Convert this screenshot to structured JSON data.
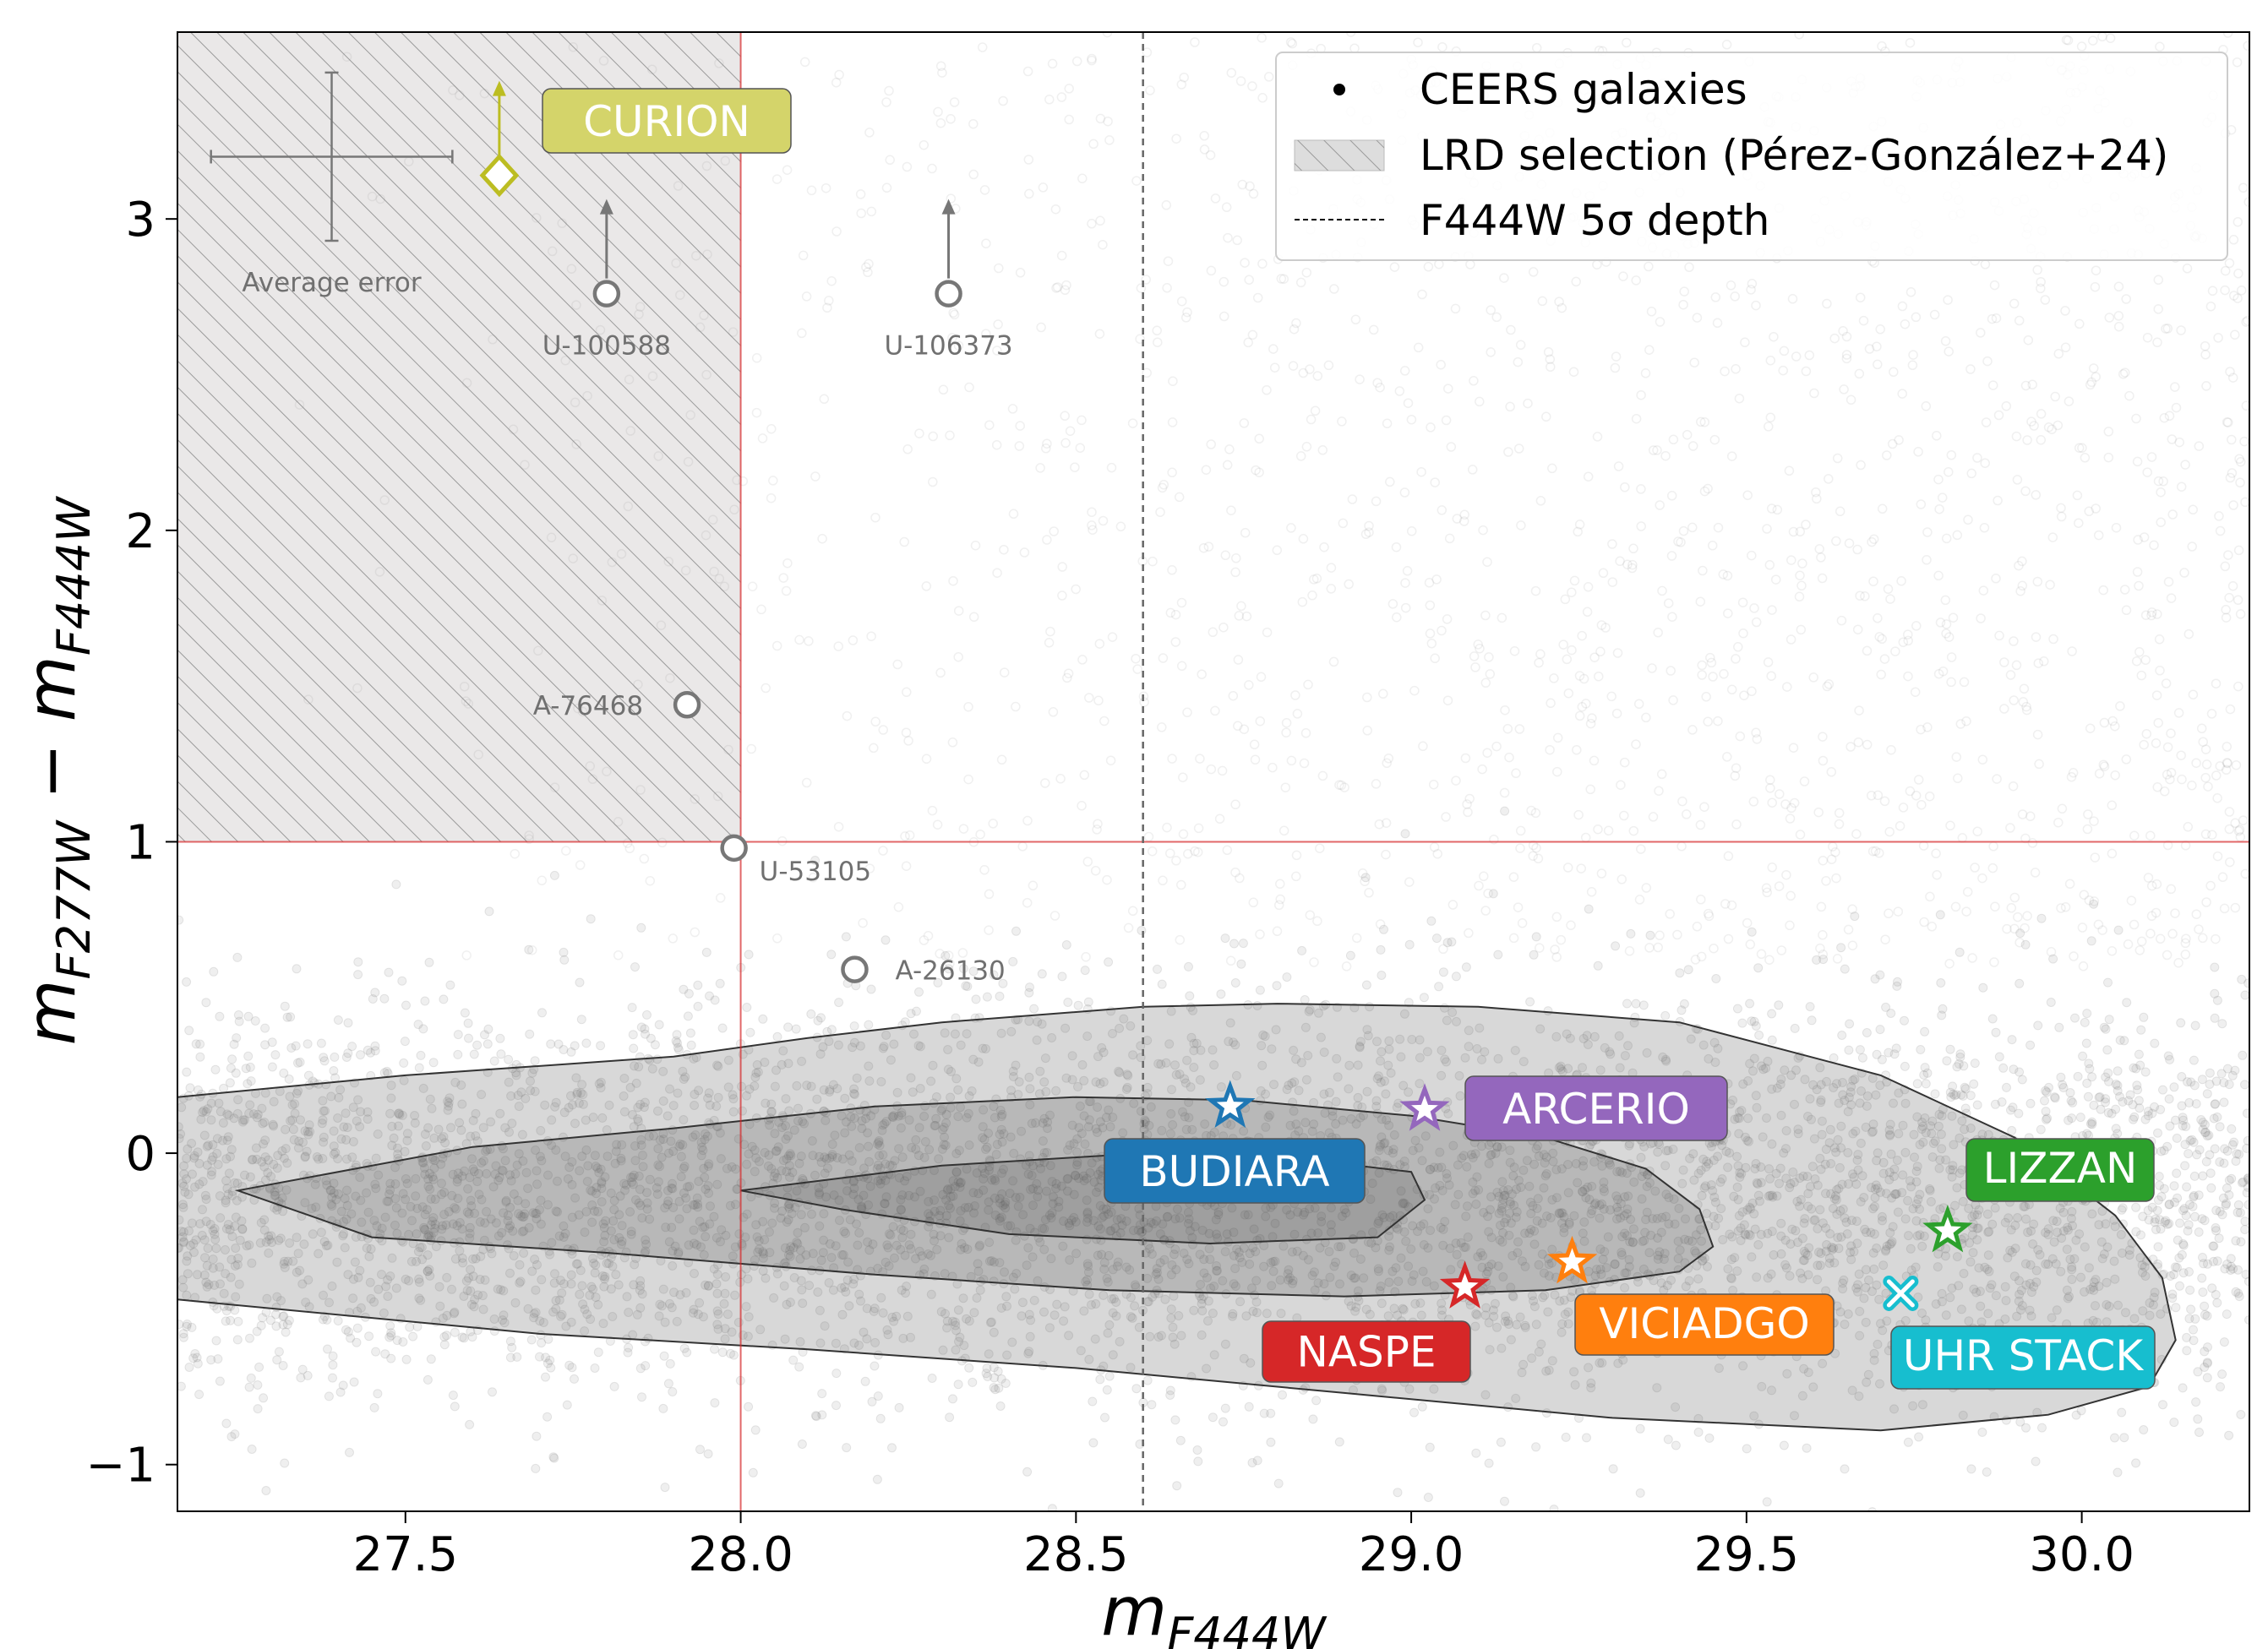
{
  "chart_data": {
    "type": "scatter",
    "title": "",
    "xlabel": {
      "main": "m",
      "sub": "F444W"
    },
    "ylabel": {
      "main1": "m",
      "sub1": "F277W",
      "minus": " − ",
      "main2": "m",
      "sub2": "F444W"
    },
    "xlim": [
      27.16,
      30.25
    ],
    "ylim": [
      -1.15,
      3.6
    ],
    "x_ticks": [
      {
        "value": 27.5,
        "label": "27.5"
      },
      {
        "value": 28.0,
        "label": "28.0"
      },
      {
        "value": 28.5,
        "label": "28.5"
      },
      {
        "value": 29.0,
        "label": "29.0"
      },
      {
        "value": 29.5,
        "label": "29.5"
      },
      {
        "value": 30.0,
        "label": "30.0"
      }
    ],
    "y_ticks": [
      {
        "value": -1,
        "label": "−1"
      },
      {
        "value": 0,
        "label": "0"
      },
      {
        "value": 1,
        "label": "1"
      },
      {
        "value": 2,
        "label": "2"
      },
      {
        "value": 3,
        "label": "3"
      }
    ],
    "grid": false,
    "legend": {
      "placement": "top-right",
      "entries": [
        {
          "name": "CEERS galaxies",
          "marker": "dot"
        },
        {
          "name": "LRD selection (Pérez-González+24)",
          "marker": "hatch"
        },
        {
          "name": "F444W 5σ depth",
          "marker": "dashed-line"
        }
      ]
    },
    "background_scatter": {
      "name": "CEERS galaxies",
      "color": "#808080",
      "distribution": "dense near color 0 with spread ~0.3; sparse cloud up to color 3.6; magnitudes 27.2–30.25"
    },
    "lrd_region": {
      "x_max": 28.0,
      "y_min": 1.0,
      "line_color": "#d62728"
    },
    "depth_line": {
      "x": 28.6,
      "color": "#666666"
    },
    "contours": {
      "color": "#333333",
      "levels": [
        [
          [
            27.16,
            0.18
          ],
          [
            27.5,
            0.25
          ],
          [
            27.9,
            0.31
          ],
          [
            28.1,
            0.37
          ],
          [
            28.3,
            0.42
          ],
          [
            28.6,
            0.47
          ],
          [
            28.8,
            0.48
          ],
          [
            29.1,
            0.47
          ],
          [
            29.4,
            0.42
          ],
          [
            29.7,
            0.25
          ],
          [
            29.9,
            0.05
          ],
          [
            30.05,
            -0.2
          ],
          [
            30.12,
            -0.4
          ],
          [
            30.14,
            -0.6
          ],
          [
            30.1,
            -0.75
          ],
          [
            29.95,
            -0.84
          ],
          [
            29.7,
            -0.89
          ],
          [
            29.3,
            -0.85
          ],
          [
            28.9,
            -0.77
          ],
          [
            28.5,
            -0.69
          ],
          [
            28.1,
            -0.63
          ],
          [
            27.7,
            -0.58
          ],
          [
            27.16,
            -0.47
          ]
        ],
        [
          [
            27.25,
            -0.12
          ],
          [
            27.6,
            0.02
          ],
          [
            27.9,
            0.08
          ],
          [
            28.2,
            0.15
          ],
          [
            28.5,
            0.18
          ],
          [
            28.75,
            0.17
          ],
          [
            29.0,
            0.12
          ],
          [
            29.2,
            0.05
          ],
          [
            29.35,
            -0.05
          ],
          [
            29.43,
            -0.18
          ],
          [
            29.45,
            -0.3
          ],
          [
            29.4,
            -0.38
          ],
          [
            29.2,
            -0.44
          ],
          [
            28.9,
            -0.46
          ],
          [
            28.55,
            -0.44
          ],
          [
            28.2,
            -0.39
          ],
          [
            27.8,
            -0.32
          ],
          [
            27.45,
            -0.27
          ]
        ],
        [
          [
            28.0,
            -0.12
          ],
          [
            28.3,
            -0.04
          ],
          [
            28.6,
            0.0
          ],
          [
            28.8,
            -0.01
          ],
          [
            29.0,
            -0.06
          ],
          [
            29.02,
            -0.15
          ],
          [
            28.95,
            -0.27
          ],
          [
            28.7,
            -0.29
          ],
          [
            28.4,
            -0.26
          ],
          [
            28.15,
            -0.18
          ]
        ]
      ]
    },
    "objects": [
      {
        "name": "CURION",
        "x": 27.64,
        "y": 3.14,
        "marker": "diamond",
        "color": "#bcbd22",
        "label_bg": "#d4d46a",
        "upper_limit": true
      },
      {
        "name": "U-100588",
        "x": 27.8,
        "y": 2.76,
        "marker": "circle",
        "color": "#777777",
        "upper_limit": true
      },
      {
        "name": "U-106373",
        "x": 28.31,
        "y": 2.76,
        "marker": "circle",
        "color": "#777777",
        "upper_limit": true
      },
      {
        "name": "A-76468",
        "x": 27.92,
        "y": 1.44,
        "marker": "circle",
        "color": "#777777",
        "upper_limit": false
      },
      {
        "name": "U-53105",
        "x": 27.99,
        "y": 0.98,
        "marker": "circle",
        "color": "#777777",
        "upper_limit": false
      },
      {
        "name": "A-26130",
        "x": 28.17,
        "y": 0.59,
        "marker": "circle",
        "color": "#777777",
        "upper_limit": false
      },
      {
        "name": "BUDIARA",
        "x": 28.73,
        "y": 0.15,
        "marker": "star",
        "color": "#1f77b4",
        "label_bg": "#1f77b4"
      },
      {
        "name": "ARCERIO",
        "x": 29.02,
        "y": 0.14,
        "marker": "star",
        "color": "#9467bd",
        "label_bg": "#9467bd"
      },
      {
        "name": "NASPE",
        "x": 29.08,
        "y": -0.43,
        "marker": "star",
        "color": "#d62728",
        "label_bg": "#d62728"
      },
      {
        "name": "VICIADGO",
        "x": 29.24,
        "y": -0.35,
        "marker": "star",
        "color": "#ff7f0e",
        "label_bg": "#ff7f0e"
      },
      {
        "name": "LIZZAN",
        "x": 29.8,
        "y": -0.25,
        "marker": "star",
        "color": "#2ca02c",
        "label_bg": "#2ca02c"
      },
      {
        "name": "UHR STACK",
        "x": 29.73,
        "y": -0.45,
        "marker": "x",
        "color": "#17becf",
        "label_bg": "#17becf"
      }
    ],
    "average_error": {
      "label": "Average error",
      "x": 27.39,
      "y": 3.2,
      "dx": 0.18,
      "dy": 0.27
    }
  }
}
